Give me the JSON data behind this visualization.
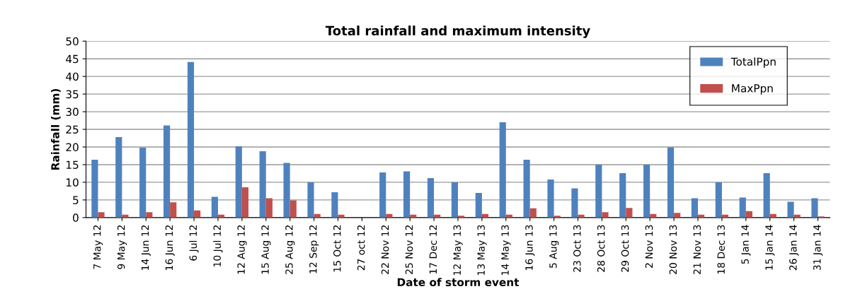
{
  "chart_data": {
    "type": "bar",
    "title": "Total rainfall and maximum intensity",
    "xlabel": "Date of storm event",
    "ylabel": "Rainfall (mm)",
    "categories": [
      "7 May 12",
      "9 May 12",
      "14 Jun 12",
      "16 Jun 12",
      "6 Jul 12",
      "10 Jul 12",
      "12 Aug 12",
      "15 Aug 12",
      "25 Aug 12",
      "12 Sep 12",
      "15 Oct 12",
      "27 oct 12",
      "22 Nov 12",
      "25 Nov 12",
      "17 Dec 12",
      "12 May 13",
      "13 May 13",
      "14 May 13",
      "16 Jun 13",
      "5 Aug 13",
      "23 Oct 13",
      "28 Oct 13",
      "29 Oct 13",
      "2 Nov 13",
      "20 Nov 13",
      "21 Nov 13",
      "18 Dec 13",
      "5 Jan 14",
      "15 Jan 14",
      "26 Jan 14",
      "31 Jan 14"
    ],
    "series": [
      {
        "name": "TotalPpn",
        "color": "#4f81bd",
        "values": [
          16.4,
          22.8,
          19.8,
          26.1,
          44.1,
          5.9,
          20.2,
          18.8,
          15.5,
          10,
          7.2,
          0,
          12.8,
          13.1,
          11.2,
          10,
          7,
          27,
          16.4,
          10.8,
          8.3,
          15,
          12.6,
          15,
          19.9,
          5.5,
          10,
          5.7,
          12.6,
          4.5,
          5.5
        ]
      },
      {
        "name": "MaxPpn",
        "color": "#c0504d",
        "values": [
          1.5,
          0.8,
          1.5,
          4.3,
          2,
          0.8,
          8.6,
          5.5,
          4.9,
          1,
          0.8,
          0,
          1,
          0.8,
          0.8,
          0.5,
          1,
          0.8,
          2.6,
          0.5,
          0.8,
          1.5,
          2.7,
          1,
          1.3,
          0.8,
          0.8,
          1.8,
          1,
          0.8,
          0.3
        ]
      }
    ],
    "ylim": [
      0,
      50
    ],
    "yticks": [
      0,
      5,
      10,
      15,
      20,
      25,
      30,
      35,
      40,
      45,
      50
    ],
    "grid": "y",
    "legend": "top right"
  }
}
